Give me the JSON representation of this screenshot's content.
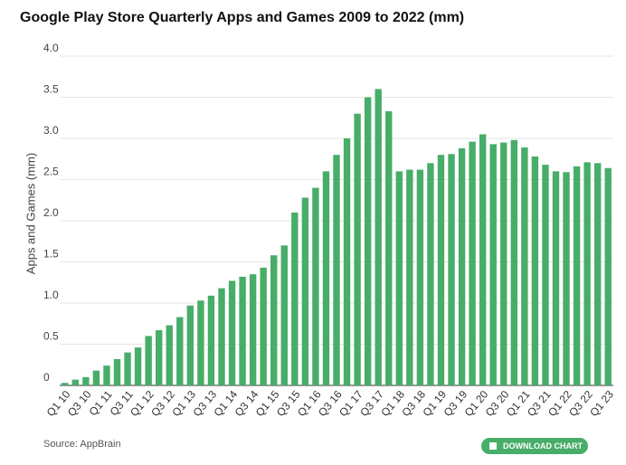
{
  "chart_data": {
    "type": "bar",
    "title": "Google Play Store Quarterly Apps and Games 2009 to 2022 (mm)",
    "y_label": "Apps and Games (mm)",
    "source": "Source: AppBrain",
    "button": "DOWNLOAD CHART",
    "color": "#47ad68",
    "grid": true,
    "ylim": [
      0,
      4
    ],
    "yticks": [
      0,
      0.5,
      {
        "value": 1,
        "label": "1.0"
      },
      1.5,
      {
        "value": 2,
        "label": "2.0"
      },
      2.5,
      {
        "value": 3,
        "label": "3.0"
      },
      3.5,
      {
        "value": 4,
        "label": "4.0"
      }
    ],
    "categories": [
      "Q1 10",
      null,
      "Q3 10",
      null,
      "Q1 11",
      null,
      "Q3 11",
      null,
      "Q1 12",
      null,
      "Q3 12",
      null,
      "Q1 13",
      null,
      "Q3 13",
      null,
      "Q1 14",
      null,
      "Q3 14",
      null,
      "Q1 15",
      null,
      "Q3 15",
      null,
      "Q1 16",
      null,
      "Q3 16",
      null,
      "Q1 17",
      null,
      "Q3 17",
      null,
      "Q1 18",
      null,
      "Q3 18",
      null,
      "Q1 19",
      null,
      "Q3 19",
      null,
      "Q1 20",
      null,
      "Q3 20",
      null,
      "Q1 21",
      null,
      "Q3 21",
      null,
      "Q1 22",
      null,
      "Q3 22",
      null,
      "Q1 23"
    ],
    "values": [
      0.03,
      0.07,
      0.1,
      0.18,
      0.24,
      0.32,
      0.4,
      0.46,
      0.6,
      0.67,
      0.73,
      0.83,
      0.97,
      1.03,
      1.09,
      1.18,
      1.27,
      1.32,
      1.35,
      1.43,
      1.58,
      1.7,
      2.1,
      2.28,
      2.4,
      2.6,
      2.8,
      3.0,
      3.3,
      3.5,
      3.6,
      3.33,
      2.6,
      2.62,
      2.62,
      2.7,
      2.8,
      2.81,
      2.88,
      2.96,
      3.05,
      2.93,
      2.95,
      2.98,
      2.89,
      2.78,
      2.68,
      2.6,
      2.59,
      2.66,
      2.71,
      2.7,
      2.64
    ]
  }
}
